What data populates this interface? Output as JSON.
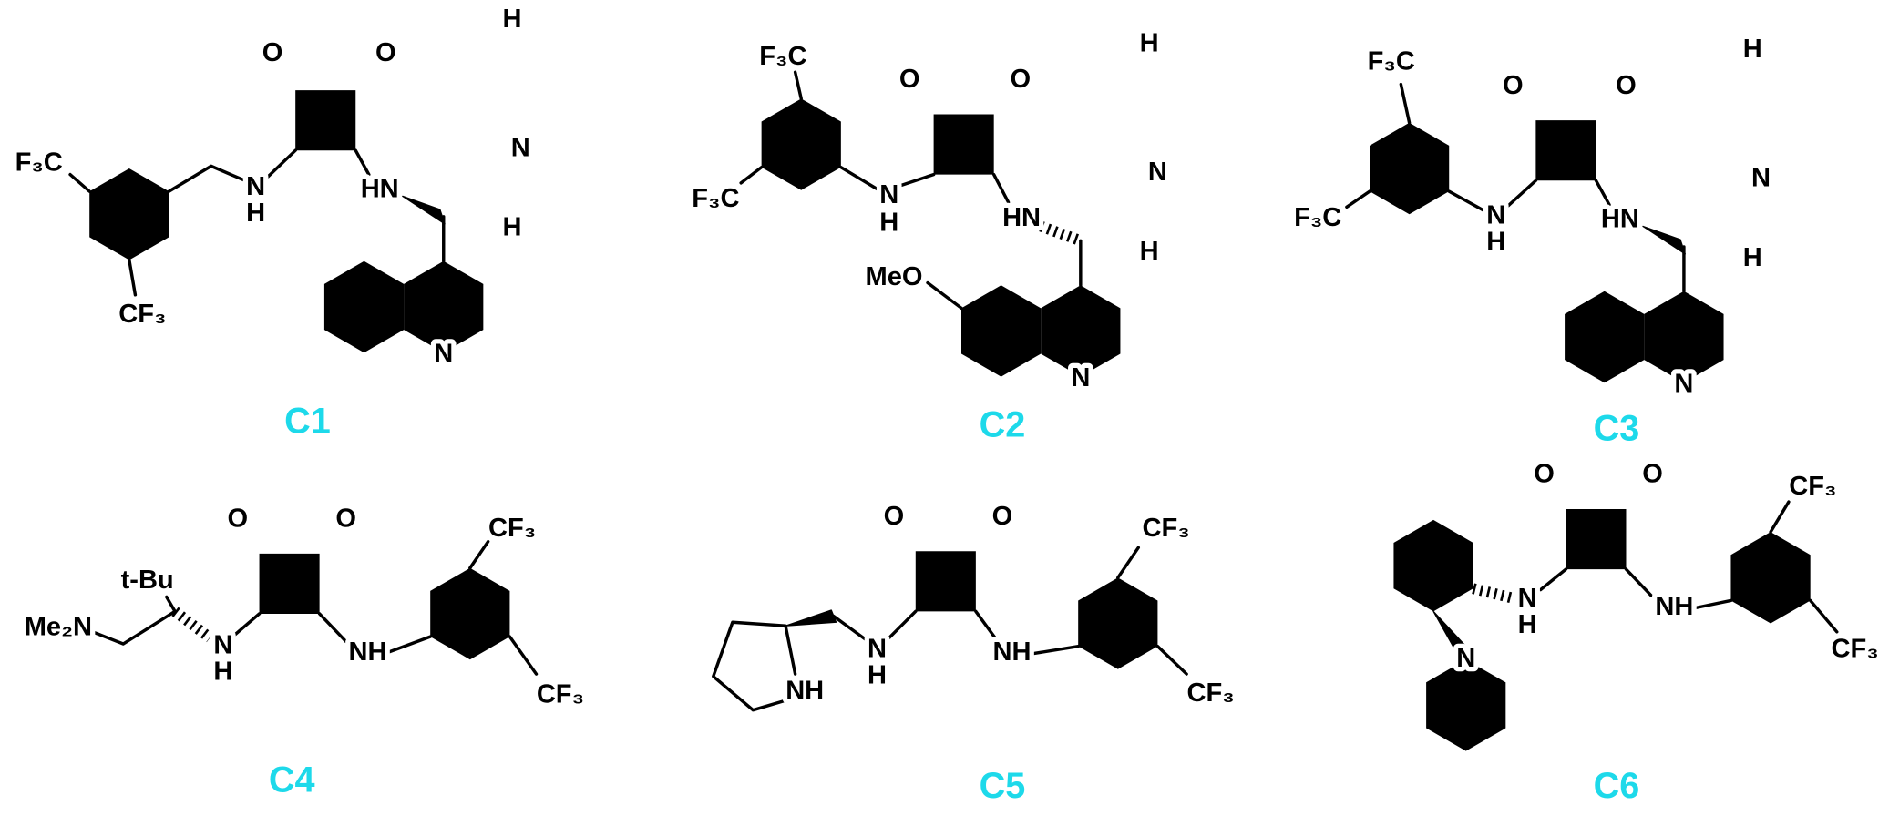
{
  "compounds": [
    {
      "label": "C1",
      "atoms": [
        "O",
        "O",
        "F₃C",
        "CF₃",
        "N",
        "H",
        "HN",
        "N",
        "N",
        "H",
        "H"
      ]
    },
    {
      "label": "C2",
      "atoms": [
        "O",
        "O",
        "F₃C",
        "F₃C",
        "N",
        "H",
        "HN",
        "N",
        "MeO",
        "N",
        "H",
        "H"
      ]
    },
    {
      "label": "C3",
      "atoms": [
        "O",
        "O",
        "F₃C",
        "F₃C",
        "N",
        "H",
        "HN",
        "N",
        "N",
        "H",
        "H"
      ]
    },
    {
      "label": "C4",
      "atoms": [
        "O",
        "O",
        "t-Bu",
        "Me₂N",
        "N",
        "H",
        "NH",
        "CF₃",
        "CF₃"
      ]
    },
    {
      "label": "C5",
      "atoms": [
        "O",
        "O",
        "NH",
        "N",
        "H",
        "NH",
        "CF₃",
        "CF₃"
      ]
    },
    {
      "label": "C6",
      "atoms": [
        "O",
        "O",
        "N",
        "N",
        "H",
        "NH",
        "CF₃",
        "CF₃"
      ]
    }
  ]
}
